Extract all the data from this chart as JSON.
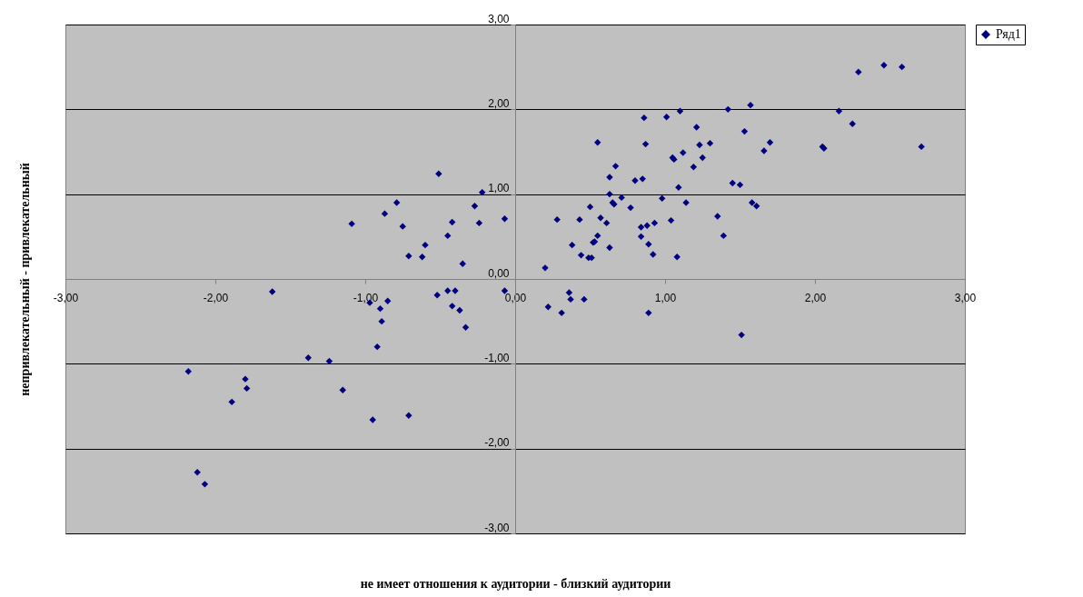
{
  "chart_data": {
    "type": "scatter",
    "xlabel": "не имеет отношения к аудитории - близкий аудитории",
    "ylabel": "непривлекательный - привлекательный",
    "xlim": [
      -3,
      3
    ],
    "ylim": [
      -3,
      3
    ],
    "xticks": [
      {
        "value": -3,
        "label": "-3,00"
      },
      {
        "value": -2,
        "label": "-2,00"
      },
      {
        "value": -1,
        "label": "-1,00"
      },
      {
        "value": 0,
        "label": "0,00"
      },
      {
        "value": 1,
        "label": "1,00"
      },
      {
        "value": 2,
        "label": "2,00"
      },
      {
        "value": 3,
        "label": "3,00"
      }
    ],
    "yticks": [
      {
        "value": -3,
        "label": "-3,00"
      },
      {
        "value": -2,
        "label": "-2,00"
      },
      {
        "value": -1,
        "label": "-1,00"
      },
      {
        "value": 0,
        "label": "0,00"
      },
      {
        "value": 1,
        "label": "1,00"
      },
      {
        "value": 2,
        "label": "2,00"
      },
      {
        "value": 3,
        "label": "3,00"
      }
    ],
    "grid": "y",
    "legend": "right",
    "marker": "diamond",
    "series": [
      {
        "name": "Ряд1",
        "color": "#000080",
        "x": [
          -2.18,
          -2.12,
          -2.07,
          -1.89,
          -1.8,
          -1.79,
          -1.62,
          -1.38,
          -1.24,
          -1.15,
          -1.09,
          -0.87,
          -0.79,
          -0.75,
          -0.71,
          -0.62,
          -0.6,
          -0.51,
          -0.45,
          -0.42,
          -0.35,
          -0.27,
          -0.22,
          -0.24,
          -0.07,
          -0.97,
          -0.9,
          -0.85,
          -0.89,
          -0.92,
          -0.52,
          -0.45,
          -0.4,
          -0.42,
          -0.37,
          -0.33,
          -0.07,
          -0.95,
          -0.71,
          0.86,
          1.01,
          1.1,
          1.42,
          1.57,
          1.21,
          1.53,
          0.55,
          0.87,
          1.23,
          1.3,
          1.7,
          1.66,
          1.12,
          1.05,
          1.06,
          1.25,
          1.19,
          0.67,
          0.63,
          0.8,
          0.85,
          1.09,
          1.45,
          1.5,
          0.63,
          0.71,
          0.65,
          0.66,
          0.98,
          1.14,
          1.58,
          1.61,
          0.5,
          0.77,
          0.28,
          0.43,
          0.57,
          0.61,
          1.35,
          1.04,
          0.84,
          0.88,
          0.93,
          0.55,
          0.52,
          0.53,
          1.39,
          0.84,
          0.38,
          0.89,
          0.63,
          0.44,
          0.49,
          0.51,
          0.92,
          1.08,
          0.2,
          0.36,
          0.37,
          0.46,
          0.22,
          0.31,
          0.89,
          1.51,
          2.29,
          2.46,
          2.58,
          2.16,
          2.25,
          2.05,
          2.06,
          2.71
        ],
        "values": [
          -1.09,
          -2.28,
          -2.42,
          -1.45,
          -1.18,
          -1.29,
          -0.15,
          -0.93,
          -0.97,
          -1.31,
          0.65,
          0.77,
          0.9,
          0.62,
          0.27,
          0.26,
          0.4,
          1.24,
          0.51,
          0.67,
          0.18,
          0.86,
          1.02,
          0.66,
          0.71,
          -0.28,
          -0.35,
          -0.26,
          -0.5,
          -0.8,
          -0.19,
          -0.14,
          -0.14,
          -0.32,
          -0.37,
          -0.57,
          -0.14,
          -1.66,
          -1.61,
          1.9,
          1.91,
          1.98,
          2.0,
          2.05,
          1.79,
          1.74,
          1.61,
          1.59,
          1.58,
          1.6,
          1.61,
          1.51,
          1.49,
          1.43,
          1.41,
          1.43,
          1.32,
          1.33,
          1.2,
          1.16,
          1.18,
          1.08,
          1.13,
          1.11,
          1.0,
          0.96,
          0.9,
          0.88,
          0.95,
          0.9,
          0.9,
          0.86,
          0.85,
          0.84,
          0.7,
          0.7,
          0.72,
          0.66,
          0.74,
          0.69,
          0.61,
          0.63,
          0.66,
          0.51,
          0.43,
          0.44,
          0.51,
          0.5,
          0.4,
          0.41,
          0.37,
          0.28,
          0.25,
          0.25,
          0.29,
          0.26,
          0.13,
          -0.16,
          -0.24,
          -0.24,
          -0.33,
          -0.4,
          -0.4,
          -0.66,
          2.44,
          2.52,
          2.5,
          1.98,
          1.83,
          1.56,
          1.54,
          1.56
        ]
      }
    ]
  }
}
